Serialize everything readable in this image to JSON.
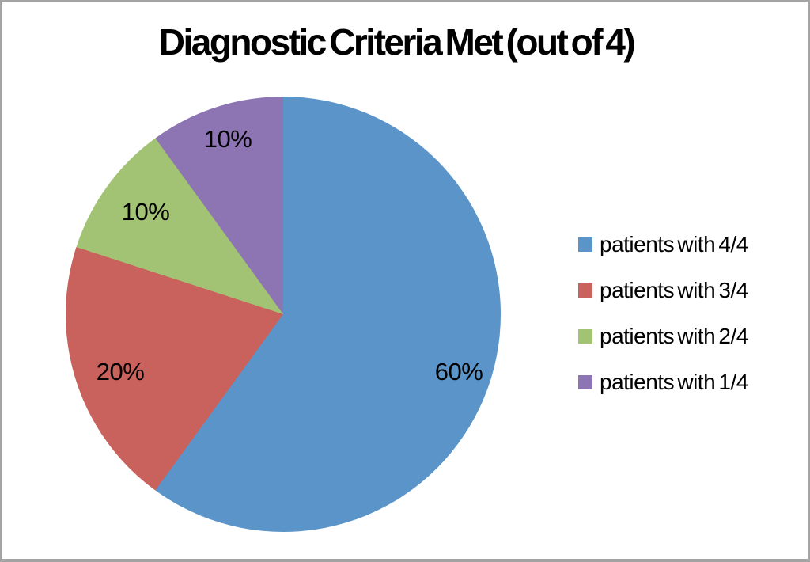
{
  "page": {
    "background": "#FFFFFF",
    "border_color": "#A4A4A4"
  },
  "chart_data": {
    "type": "pie",
    "title": "Diagnostic Criteria Met (out of 4)",
    "categories": [
      "patients with 4/4",
      "patients with 3/4",
      "patients with 2/4",
      "patients with 1/4"
    ],
    "values": [
      60,
      20,
      10,
      10
    ],
    "unit": "%",
    "colors": [
      "#5B94C8",
      "#C9615C",
      "#A3C374",
      "#8D74B2"
    ],
    "slice_labels": [
      "60%",
      "20%",
      "10%",
      "10%"
    ],
    "label_color": "#000000",
    "start_angle_deg": 0,
    "direction": "clockwise",
    "legend_position": "right",
    "grid": false
  }
}
